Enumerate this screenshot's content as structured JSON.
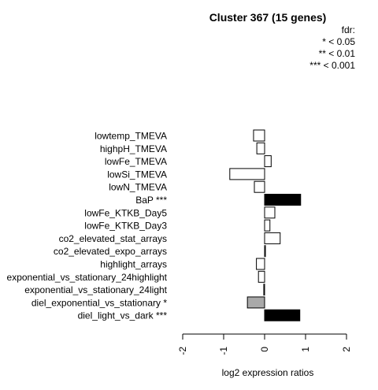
{
  "chart_data": {
    "type": "bar",
    "orientation": "horizontal",
    "title": "Cluster 367 (15 genes)",
    "xlabel": "log2 expression ratios",
    "xlim": [
      -2,
      2
    ],
    "xticks": [
      "-2",
      "-1",
      "0",
      "1",
      "2"
    ],
    "legend": {
      "placement": "top-right",
      "lines": [
        "fdr:",
        "* < 0.05",
        "** < 0.01",
        "*** < 0.001"
      ]
    },
    "categories": [
      "lowtemp_TMEVA",
      "highpH_TMEVA",
      "lowFe_TMEVA",
      "lowSi_TMEVA",
      "lowN_TMEVA",
      "BaP ***",
      "lowFe_KTKB_Day5",
      "lowFe_KTKB_Day3",
      "co2_elevated_stat_arrays",
      "co2_elevated_expo_arrays",
      "highlight_arrays",
      "exponential_vs_stationary_24highlight",
      "exponential_vs_stationary_24light",
      "diel_exponential_vs_stationary *",
      "diel_light_vs_dark ***"
    ],
    "values": [
      -0.27,
      -0.19,
      0.16,
      -0.85,
      -0.25,
      0.88,
      0.25,
      0.13,
      0.38,
      0.02,
      -0.2,
      -0.15,
      -0.02,
      -0.42,
      0.86
    ],
    "fills": [
      "#ffffff",
      "#ffffff",
      "#ffffff",
      "#ffffff",
      "#ffffff",
      "#000000",
      "#ffffff",
      "#ffffff",
      "#ffffff",
      "#ffffff",
      "#ffffff",
      "#ffffff",
      "#ffffff",
      "#a9a9a9",
      "#000000"
    ]
  }
}
